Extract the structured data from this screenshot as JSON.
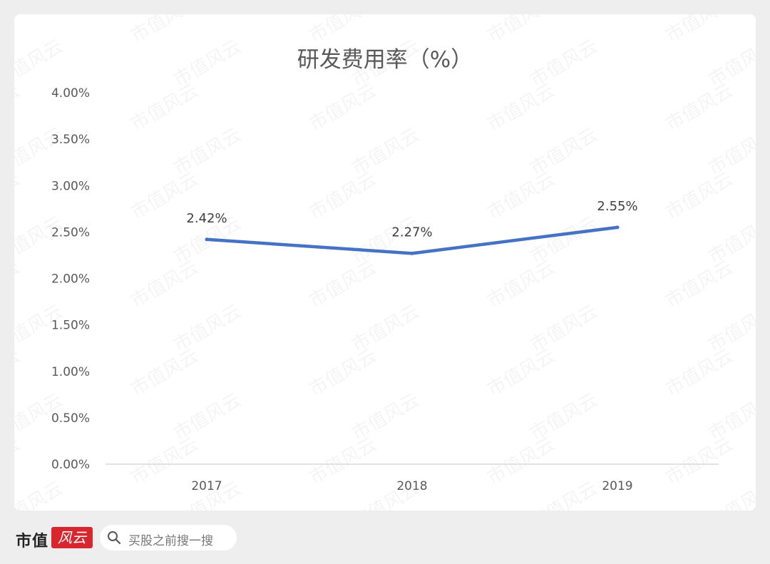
{
  "chart_data": {
    "type": "line",
    "title": "研发费用率（%）",
    "categories": [
      "2017",
      "2018",
      "2019"
    ],
    "series": [
      {
        "values": [
          2.42,
          2.27,
          2.55
        ],
        "labels": [
          "2.42%",
          "2.27%",
          "2.55%"
        ]
      }
    ],
    "ylim": [
      0,
      4
    ],
    "y_ticks": [
      "0.00%",
      "0.50%",
      "1.00%",
      "1.50%",
      "2.00%",
      "2.50%",
      "3.00%",
      "3.50%",
      "4.00%"
    ],
    "grid": false,
    "legend": "none"
  },
  "colors": {
    "line": "#4472c4",
    "axis": "#d9d9d9",
    "text": "#595959"
  },
  "watermark": "市值风云",
  "footer": {
    "brand_text": "市值",
    "brand_logo": "风云",
    "search_text": "买股之前搜一搜",
    "search_icon": "search-icon"
  }
}
